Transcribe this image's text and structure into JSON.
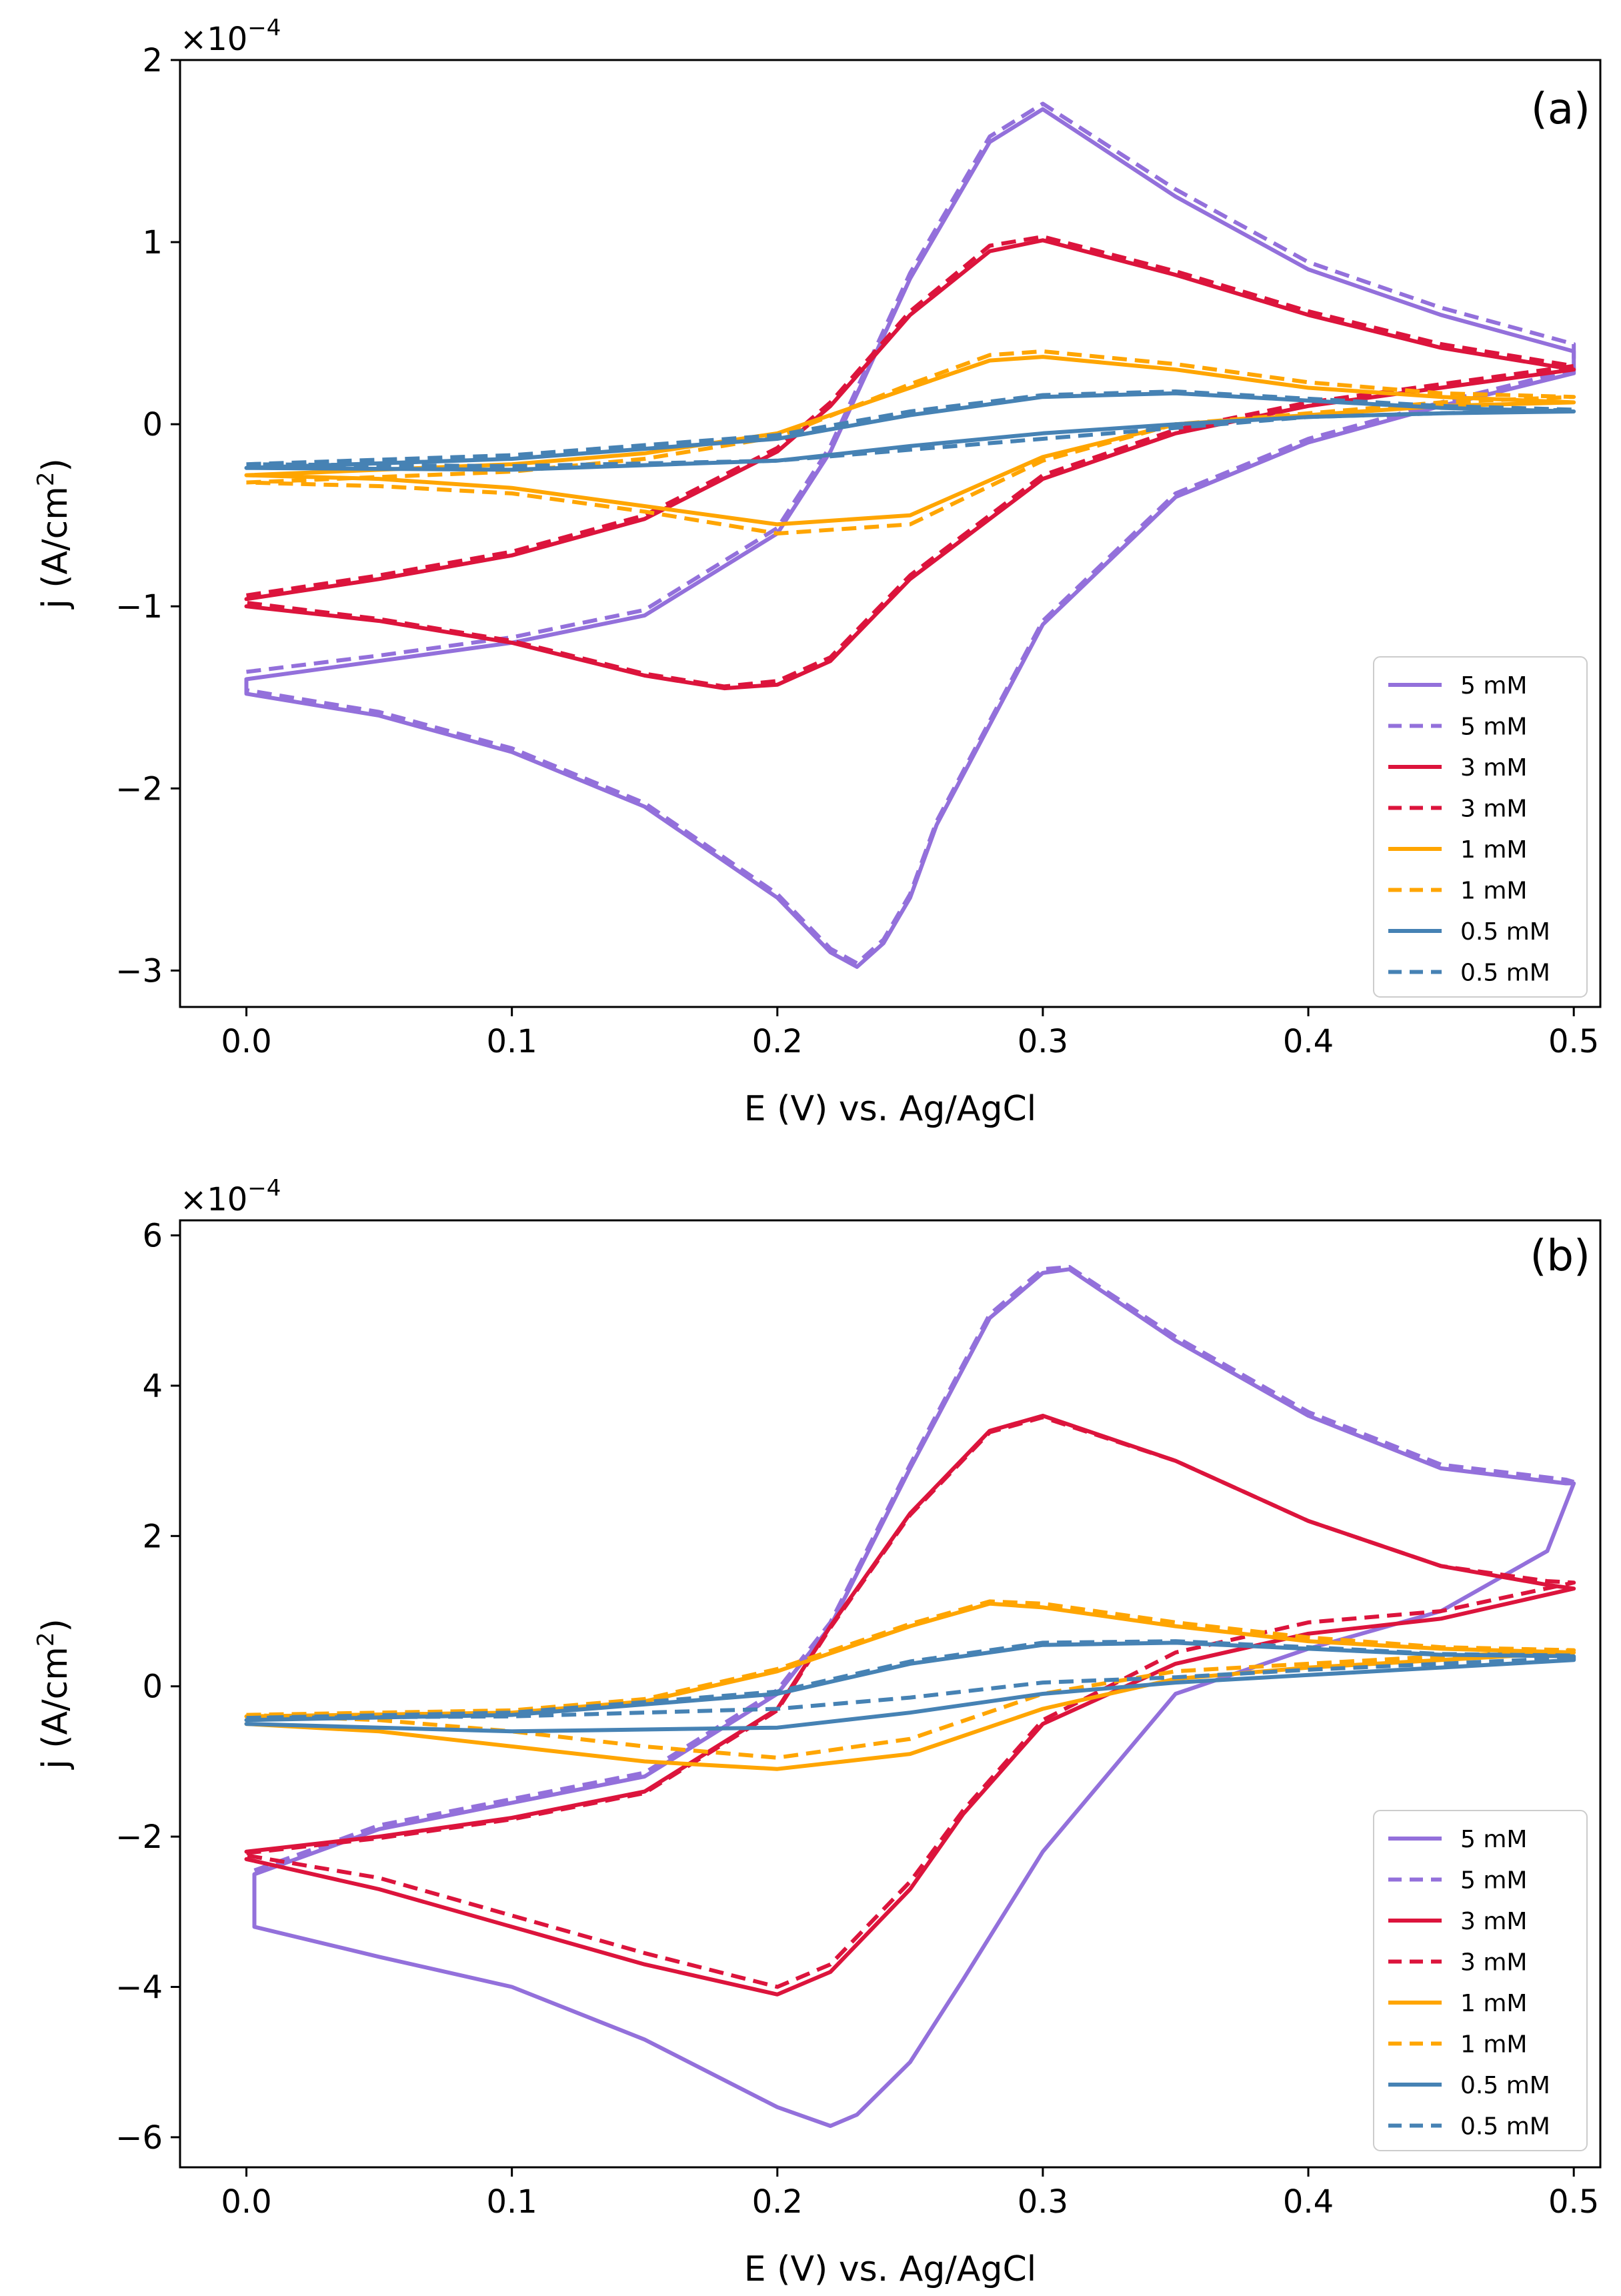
{
  "chart_data": [
    {
      "type": "line",
      "panel_label": "(a)",
      "xlabel": "E (V) vs. Ag/AgCl",
      "ylabel_main": "j (A/cm",
      "ylabel_sup": "2",
      "ylabel_end": ")",
      "y_multiplier_base": "×10",
      "y_multiplier_exp": "−4",
      "xlim": [
        -0.025,
        0.51
      ],
      "ylim": [
        -3.2,
        2.0
      ],
      "xticks": [
        0.0,
        0.1,
        0.2,
        0.3,
        0.4,
        0.5
      ],
      "xtick_labels": [
        "0.0",
        "0.1",
        "0.2",
        "0.3",
        "0.4",
        "0.5"
      ],
      "yticks": [
        -3,
        -2,
        -1,
        0,
        1,
        2
      ],
      "ytick_labels": [
        "−3",
        "−2",
        "−1",
        "0",
        "1",
        "2"
      ],
      "legend_position": "lower-right",
      "series": [
        {
          "name": "5 mM",
          "color": "#9370db",
          "dash": "solid",
          "x": [
            0.0,
            0.05,
            0.1,
            0.15,
            0.2,
            0.22,
            0.25,
            0.28,
            0.3,
            0.35,
            0.4,
            0.45,
            0.5,
            0.5,
            0.45,
            0.4,
            0.35,
            0.3,
            0.26,
            0.25,
            0.24,
            0.23,
            0.22,
            0.2,
            0.15,
            0.1,
            0.05,
            0.0,
            0.0
          ],
          "y": [
            -1.4,
            -1.3,
            -1.2,
            -1.05,
            -0.6,
            -0.15,
            0.8,
            1.55,
            1.73,
            1.25,
            0.85,
            0.6,
            0.4,
            0.28,
            0.1,
            -0.1,
            -0.4,
            -1.1,
            -2.2,
            -2.6,
            -2.85,
            -2.98,
            -2.9,
            -2.6,
            -2.1,
            -1.8,
            -1.6,
            -1.48,
            -1.4
          ]
        },
        {
          "name": "5 mM",
          "color": "#9370db",
          "dash": "dashed",
          "x": [
            0.0,
            0.05,
            0.1,
            0.15,
            0.2,
            0.22,
            0.25,
            0.28,
            0.3,
            0.35,
            0.4,
            0.45,
            0.5,
            0.5,
            0.45,
            0.4,
            0.35,
            0.3,
            0.26,
            0.25,
            0.24,
            0.23,
            0.22,
            0.2,
            0.15,
            0.1,
            0.05,
            0.0,
            0.0
          ],
          "y": [
            -1.36,
            -1.27,
            -1.17,
            -1.02,
            -0.57,
            -0.12,
            0.83,
            1.58,
            1.76,
            1.29,
            0.89,
            0.64,
            0.44,
            0.3,
            0.12,
            -0.08,
            -0.38,
            -1.08,
            -2.18,
            -2.58,
            -2.83,
            -2.96,
            -2.88,
            -2.58,
            -2.08,
            -1.78,
            -1.58,
            -1.46,
            -1.36
          ]
        },
        {
          "name": "3 mM",
          "color": "#dc143c",
          "dash": "solid",
          "x": [
            0.0,
            0.05,
            0.1,
            0.15,
            0.2,
            0.22,
            0.25,
            0.28,
            0.3,
            0.35,
            0.4,
            0.45,
            0.5,
            0.5,
            0.45,
            0.4,
            0.35,
            0.3,
            0.25,
            0.22,
            0.2,
            0.18,
            0.15,
            0.1,
            0.05,
            0.0
          ],
          "y": [
            -0.96,
            -0.85,
            -0.72,
            -0.52,
            -0.15,
            0.1,
            0.6,
            0.95,
            1.01,
            0.82,
            0.6,
            0.42,
            0.3,
            0.3,
            0.2,
            0.1,
            -0.05,
            -0.3,
            -0.85,
            -1.3,
            -1.43,
            -1.45,
            -1.38,
            -1.2,
            -1.08,
            -1.0
          ]
        },
        {
          "name": "3 mM",
          "color": "#dc143c",
          "dash": "dashed",
          "x": [
            0.0,
            0.05,
            0.1,
            0.15,
            0.2,
            0.22,
            0.25,
            0.28,
            0.3,
            0.35,
            0.4,
            0.45,
            0.5,
            0.5,
            0.45,
            0.4,
            0.35,
            0.3,
            0.25,
            0.22,
            0.2,
            0.18,
            0.15,
            0.1,
            0.05,
            0.0
          ],
          "y": [
            -0.94,
            -0.83,
            -0.7,
            -0.5,
            -0.13,
            0.12,
            0.62,
            0.98,
            1.03,
            0.84,
            0.62,
            0.44,
            0.32,
            0.32,
            0.22,
            0.12,
            -0.03,
            -0.28,
            -0.83,
            -1.28,
            -1.41,
            -1.44,
            -1.37,
            -1.19,
            -1.07,
            -0.98
          ]
        },
        {
          "name": "1 mM",
          "color": "#ffa500",
          "dash": "solid",
          "x": [
            0.0,
            0.1,
            0.15,
            0.2,
            0.25,
            0.28,
            0.3,
            0.35,
            0.4,
            0.45,
            0.5,
            0.5,
            0.45,
            0.4,
            0.35,
            0.3,
            0.25,
            0.2,
            0.15,
            0.1,
            0.05,
            0.0
          ],
          "y": [
            -0.28,
            -0.22,
            -0.16,
            -0.05,
            0.2,
            0.35,
            0.37,
            0.3,
            0.2,
            0.15,
            0.12,
            0.12,
            0.1,
            0.05,
            0.0,
            -0.18,
            -0.5,
            -0.55,
            -0.45,
            -0.35,
            -0.3,
            -0.28
          ]
        },
        {
          "name": "1 mM",
          "color": "#ffa500",
          "dash": "dashed",
          "x": [
            0.0,
            0.1,
            0.15,
            0.2,
            0.25,
            0.28,
            0.3,
            0.35,
            0.4,
            0.45,
            0.5,
            0.5,
            0.45,
            0.4,
            0.35,
            0.3,
            0.25,
            0.2,
            0.15,
            0.1,
            0.05,
            0.0
          ],
          "y": [
            -0.32,
            -0.26,
            -0.19,
            -0.07,
            0.22,
            0.38,
            0.4,
            0.33,
            0.23,
            0.17,
            0.15,
            0.15,
            0.12,
            0.06,
            0.0,
            -0.2,
            -0.55,
            -0.6,
            -0.48,
            -0.38,
            -0.34,
            -0.32
          ]
        },
        {
          "name": "0.5 mM",
          "color": "#4682b4",
          "dash": "solid",
          "x": [
            0.0,
            0.1,
            0.2,
            0.25,
            0.3,
            0.35,
            0.4,
            0.45,
            0.5,
            0.5,
            0.45,
            0.4,
            0.35,
            0.3,
            0.25,
            0.2,
            0.1,
            0.0
          ],
          "y": [
            -0.24,
            -0.19,
            -0.08,
            0.05,
            0.15,
            0.17,
            0.13,
            0.09,
            0.07,
            0.07,
            0.06,
            0.04,
            0.0,
            -0.05,
            -0.12,
            -0.2,
            -0.25,
            -0.24
          ]
        },
        {
          "name": "0.5 mM",
          "color": "#4682b4",
          "dash": "dashed",
          "x": [
            0.0,
            0.1,
            0.2,
            0.25,
            0.3,
            0.35,
            0.4,
            0.45,
            0.5,
            0.5,
            0.45,
            0.4,
            0.35,
            0.3,
            0.25,
            0.2,
            0.1,
            0.0
          ],
          "y": [
            -0.22,
            -0.17,
            -0.06,
            0.07,
            0.16,
            0.18,
            0.14,
            0.1,
            0.08,
            0.08,
            0.06,
            0.04,
            -0.02,
            -0.08,
            -0.14,
            -0.2,
            -0.23,
            -0.22
          ]
        }
      ]
    },
    {
      "type": "line",
      "panel_label": "(b)",
      "xlabel": "E (V) vs. Ag/AgCl",
      "ylabel_main": "j (A/cm",
      "ylabel_sup": "2",
      "ylabel_end": ")",
      "y_multiplier_base": "×10",
      "y_multiplier_exp": "−4",
      "xlim": [
        -0.025,
        0.51
      ],
      "ylim": [
        -6.4,
        6.2
      ],
      "xticks": [
        0.0,
        0.1,
        0.2,
        0.3,
        0.4,
        0.5
      ],
      "xtick_labels": [
        "0.0",
        "0.1",
        "0.2",
        "0.3",
        "0.4",
        "0.5"
      ],
      "yticks": [
        -6,
        -4,
        -2,
        0,
        2,
        4,
        6
      ],
      "ytick_labels": [
        "−6",
        "−4",
        "−2",
        "0",
        "2",
        "4",
        "6"
      ],
      "legend_position": "lower-right",
      "series": [
        {
          "name": "5 mM",
          "color": "#9370db",
          "dash": "solid",
          "x": [
            0.003,
            0.05,
            0.1,
            0.15,
            0.2,
            0.22,
            0.25,
            0.28,
            0.3,
            0.31,
            0.35,
            0.4,
            0.45,
            0.497,
            0.5,
            0.49,
            0.45,
            0.4,
            0.35,
            0.3,
            0.27,
            0.25,
            0.23,
            0.22,
            0.2,
            0.15,
            0.1,
            0.05,
            0.003,
            0.003
          ],
          "y": [
            -2.5,
            -1.9,
            -1.55,
            -1.2,
            -0.1,
            0.8,
            2.9,
            4.9,
            5.5,
            5.55,
            4.6,
            3.6,
            2.9,
            2.7,
            2.7,
            1.8,
            1.0,
            0.5,
            -0.1,
            -2.2,
            -3.9,
            -5.0,
            -5.7,
            -5.85,
            -5.6,
            -4.7,
            -4.0,
            -3.6,
            -3.2,
            -2.5
          ]
        },
        {
          "name": "5 mM",
          "color": "#9370db",
          "dash": "dashed",
          "x": [
            0.003,
            0.05,
            0.1,
            0.15,
            0.2,
            0.22,
            0.25,
            0.28,
            0.3,
            0.31,
            0.35,
            0.4,
            0.45,
            0.497,
            0.5
          ],
          "y": [
            -2.45,
            -1.85,
            -1.5,
            -1.15,
            -0.05,
            0.85,
            2.95,
            4.95,
            5.55,
            5.58,
            4.65,
            3.65,
            2.95,
            2.75,
            2.72
          ]
        },
        {
          "name": "3 mM",
          "color": "#dc143c",
          "dash": "solid",
          "x": [
            0.0,
            0.05,
            0.1,
            0.15,
            0.2,
            0.22,
            0.25,
            0.28,
            0.3,
            0.35,
            0.4,
            0.45,
            0.49,
            0.5,
            0.45,
            0.4,
            0.35,
            0.3,
            0.27,
            0.25,
            0.22,
            0.2,
            0.15,
            0.1,
            0.05,
            0.0
          ],
          "y": [
            -2.2,
            -2.0,
            -1.75,
            -1.4,
            -0.3,
            0.8,
            2.3,
            3.4,
            3.6,
            3.0,
            2.2,
            1.6,
            1.35,
            1.3,
            0.9,
            0.7,
            0.3,
            -0.5,
            -1.7,
            -2.7,
            -3.8,
            -4.1,
            -3.7,
            -3.2,
            -2.7,
            -2.3
          ]
        },
        {
          "name": "3 mM",
          "color": "#dc143c",
          "dash": "dashed",
          "x": [
            0.0,
            0.05,
            0.1,
            0.15,
            0.2,
            0.22,
            0.25,
            0.28,
            0.3,
            0.35,
            0.4,
            0.45,
            0.49,
            0.5,
            0.45,
            0.4,
            0.35,
            0.3,
            0.27,
            0.25,
            0.22,
            0.2,
            0.15,
            0.1,
            0.05,
            0.0
          ],
          "y": [
            -2.22,
            -2.02,
            -1.77,
            -1.42,
            -0.32,
            0.78,
            2.28,
            3.38,
            3.58,
            3.0,
            2.2,
            1.6,
            1.4,
            1.38,
            1.0,
            0.85,
            0.45,
            -0.45,
            -1.65,
            -2.6,
            -3.7,
            -4.0,
            -3.55,
            -3.05,
            -2.55,
            -2.25
          ]
        },
        {
          "name": "1 mM",
          "color": "#ffa500",
          "dash": "solid",
          "x": [
            0.0,
            0.1,
            0.15,
            0.2,
            0.25,
            0.28,
            0.3,
            0.35,
            0.4,
            0.45,
            0.5,
            0.5,
            0.45,
            0.4,
            0.35,
            0.3,
            0.25,
            0.2,
            0.15,
            0.1,
            0.05,
            0.0
          ],
          "y": [
            -0.4,
            -0.35,
            -0.2,
            0.2,
            0.8,
            1.1,
            1.05,
            0.8,
            0.6,
            0.5,
            0.45,
            0.45,
            0.35,
            0.25,
            0.1,
            -0.3,
            -0.9,
            -1.1,
            -1.0,
            -0.8,
            -0.6,
            -0.5
          ]
        },
        {
          "name": "1 mM",
          "color": "#ffa500",
          "dash": "dashed",
          "x": [
            0.0,
            0.1,
            0.15,
            0.2,
            0.25,
            0.28,
            0.3,
            0.35,
            0.4,
            0.45,
            0.5,
            0.5,
            0.45,
            0.4,
            0.35,
            0.3,
            0.25,
            0.2,
            0.15,
            0.1,
            0.05,
            0.0
          ],
          "y": [
            -0.38,
            -0.32,
            -0.17,
            0.23,
            0.83,
            1.13,
            1.1,
            0.85,
            0.65,
            0.52,
            0.48,
            0.48,
            0.4,
            0.3,
            0.2,
            -0.1,
            -0.7,
            -0.95,
            -0.8,
            -0.6,
            -0.45,
            -0.38
          ]
        },
        {
          "name": "0.5 mM",
          "color": "#4682b4",
          "dash": "solid",
          "x": [
            0.0,
            0.1,
            0.2,
            0.25,
            0.3,
            0.35,
            0.4,
            0.45,
            0.5,
            0.5,
            0.45,
            0.4,
            0.35,
            0.3,
            0.25,
            0.2,
            0.1,
            0.0
          ],
          "y": [
            -0.45,
            -0.38,
            -0.1,
            0.3,
            0.55,
            0.58,
            0.5,
            0.42,
            0.4,
            0.35,
            0.25,
            0.15,
            0.05,
            -0.1,
            -0.35,
            -0.55,
            -0.6,
            -0.5
          ]
        },
        {
          "name": "0.5 mM",
          "color": "#4682b4",
          "dash": "dashed",
          "x": [
            0.0,
            0.1,
            0.2,
            0.25,
            0.3,
            0.35,
            0.4,
            0.45,
            0.5,
            0.5,
            0.45,
            0.4,
            0.35,
            0.3,
            0.25,
            0.2,
            0.1,
            0.0
          ],
          "y": [
            -0.42,
            -0.35,
            -0.07,
            0.33,
            0.58,
            0.6,
            0.52,
            0.43,
            0.41,
            0.38,
            0.3,
            0.22,
            0.12,
            0.05,
            -0.15,
            -0.3,
            -0.4,
            -0.42
          ]
        }
      ]
    }
  ]
}
